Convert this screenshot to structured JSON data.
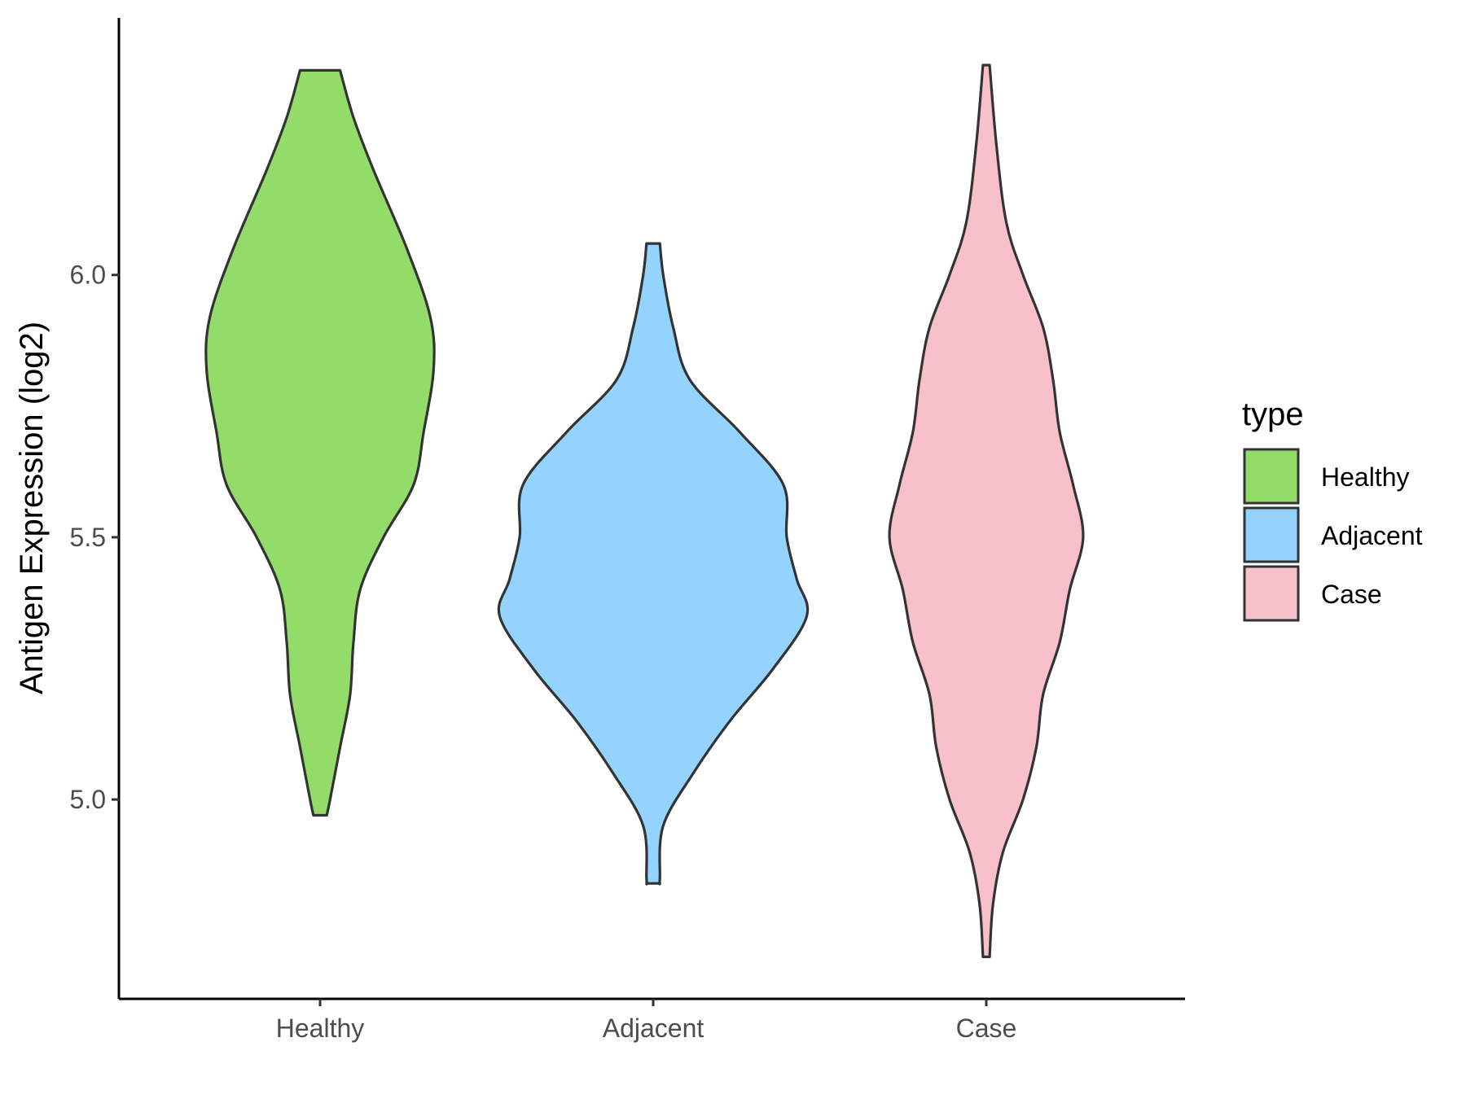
{
  "chart_data": {
    "type": "violin",
    "ylabel": "Antigen Expression (log2)",
    "xlabel": "",
    "categories": [
      "Healthy",
      "Adjacent",
      "Case"
    ],
    "yticks": [
      5.0,
      5.5,
      6.0
    ],
    "ytick_labels": [
      "5.0",
      "5.5",
      "6.0"
    ],
    "ylim": [
      4.62,
      6.49
    ],
    "grid": false,
    "legend": {
      "title": "type",
      "placement": "right",
      "items": [
        {
          "label": "Healthy",
          "color": "#93dc6a"
        },
        {
          "label": "Adjacent",
          "color": "#93d3fd"
        },
        {
          "label": "Case",
          "color": "#f7c0cb"
        }
      ]
    },
    "series": [
      {
        "category": "Healthy",
        "color": "#93dc6a",
        "min": 4.97,
        "max": 6.39,
        "density_profile": [
          [
            6.39,
            0.06
          ],
          [
            6.3,
            0.1
          ],
          [
            6.2,
            0.16
          ],
          [
            6.05,
            0.26
          ],
          [
            5.92,
            0.33
          ],
          [
            5.82,
            0.34
          ],
          [
            5.7,
            0.31
          ],
          [
            5.6,
            0.28
          ],
          [
            5.5,
            0.19
          ],
          [
            5.4,
            0.12
          ],
          [
            5.3,
            0.1
          ],
          [
            5.2,
            0.09
          ],
          [
            5.1,
            0.06
          ],
          [
            5.0,
            0.03
          ],
          [
            4.97,
            0.02
          ]
        ]
      },
      {
        "category": "Adjacent",
        "color": "#93d3fd",
        "min": 4.84,
        "max": 6.06,
        "density_profile": [
          [
            6.06,
            0.02
          ],
          [
            6.0,
            0.03
          ],
          [
            5.9,
            0.06
          ],
          [
            5.8,
            0.11
          ],
          [
            5.7,
            0.26
          ],
          [
            5.6,
            0.39
          ],
          [
            5.5,
            0.4
          ],
          [
            5.42,
            0.43
          ],
          [
            5.35,
            0.46
          ],
          [
            5.25,
            0.36
          ],
          [
            5.15,
            0.23
          ],
          [
            5.05,
            0.12
          ],
          [
            4.95,
            0.03
          ],
          [
            4.85,
            0.02
          ],
          [
            4.84,
            0.02
          ]
        ]
      },
      {
        "category": "Case",
        "color": "#f7c0cb",
        "min": 4.7,
        "max": 6.4,
        "density_profile": [
          [
            6.4,
            0.01
          ],
          [
            6.25,
            0.03
          ],
          [
            6.1,
            0.06
          ],
          [
            6.0,
            0.11
          ],
          [
            5.9,
            0.17
          ],
          [
            5.8,
            0.2
          ],
          [
            5.7,
            0.22
          ],
          [
            5.6,
            0.26
          ],
          [
            5.5,
            0.29
          ],
          [
            5.4,
            0.25
          ],
          [
            5.3,
            0.22
          ],
          [
            5.2,
            0.17
          ],
          [
            5.1,
            0.15
          ],
          [
            5.0,
            0.11
          ],
          [
            4.9,
            0.05
          ],
          [
            4.8,
            0.02
          ],
          [
            4.7,
            0.01
          ]
        ]
      }
    ]
  }
}
